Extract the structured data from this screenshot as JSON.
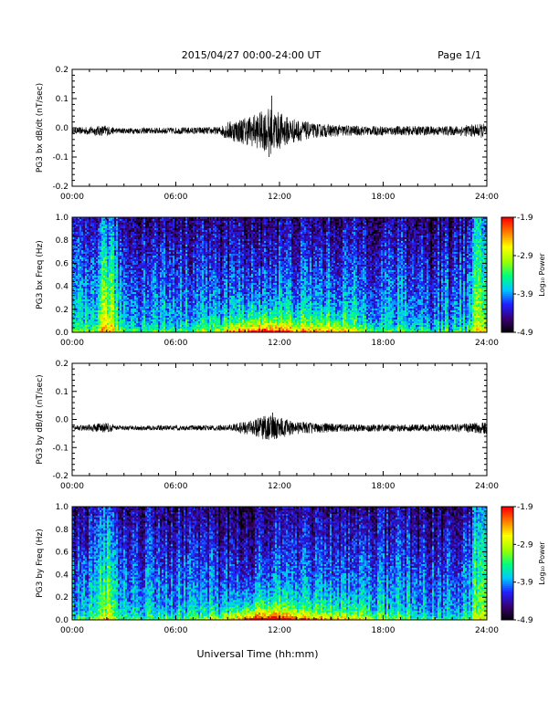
{
  "header": {
    "date_range": "2015/04/27  00:00-24:00 UT",
    "page": "Page 1/1"
  },
  "footer": {
    "xlabel": "Universal Time (hh:mm)"
  },
  "colors": {
    "trace": "#000000",
    "colormap": [
      "#000000",
      "#3a0070",
      "#2020ff",
      "#00c8ff",
      "#00ff80",
      "#a0ff00",
      "#ffff00",
      "#ff8000",
      "#ff0000"
    ]
  },
  "chart_data": [
    {
      "type": "line",
      "name": "panel-bx-dbdt",
      "ylabel": "PG3 bx dB/dt (nT/sec)",
      "xlim": [
        0,
        24
      ],
      "ylim": [
        -0.2,
        0.2
      ],
      "x_ticks": [
        "00:00",
        "06:00",
        "12:00",
        "18:00",
        "24:00"
      ],
      "y_ticks": [
        "0.2",
        "0.1",
        "0.0",
        "-0.1",
        "-0.2"
      ],
      "baseline": -0.01,
      "envelope": [
        {
          "t": 0,
          "amp": 0.006
        },
        {
          "t": 1.9,
          "amp": 0.012
        },
        {
          "t": 2.5,
          "amp": 0.006
        },
        {
          "t": 8.5,
          "amp": 0.008
        },
        {
          "t": 9.0,
          "amp": 0.02
        },
        {
          "t": 10.5,
          "amp": 0.035
        },
        {
          "t": 11.5,
          "amp": 0.05
        },
        {
          "t": 12.5,
          "amp": 0.03
        },
        {
          "t": 14.0,
          "amp": 0.015
        },
        {
          "t": 17.0,
          "amp": 0.01
        },
        {
          "t": 22.0,
          "amp": 0.01
        },
        {
          "t": 24,
          "amp": 0.016
        }
      ],
      "spikes": [
        {
          "t": 11.55,
          "y": 0.11
        },
        {
          "t": 11.4,
          "y": -0.1
        },
        {
          "t": 11.1,
          "y": 0.035
        }
      ]
    },
    {
      "type": "heatmap",
      "name": "panel-bx-freq",
      "ylabel": "PG3 bx Freq (Hz)",
      "xlim": [
        0,
        24
      ],
      "ylim": [
        0,
        1.0
      ],
      "x_ticks": [
        "00:00",
        "06:00",
        "12:00",
        "18:00",
        "24:00"
      ],
      "y_ticks": [
        "1.0",
        "0.8",
        "0.6",
        "0.4",
        "0.2",
        "0.0"
      ],
      "colorbar": {
        "label": "Log₁₀ Power",
        "min": -4.9,
        "max": -1.9,
        "ticks": [
          "-1.9",
          "-2.9",
          "-3.9",
          "-4.9"
        ]
      },
      "bright_bands": [
        {
          "t": 2.0,
          "width": 0.6,
          "level": 0.55
        }
      ],
      "low_freq_enhancement": [
        {
          "t": 11.0,
          "width": 2.5,
          "level": 0.5
        },
        {
          "t": 15.0,
          "width": 2.0,
          "level": 0.3
        }
      ]
    },
    {
      "type": "line",
      "name": "panel-by-dbdt",
      "ylabel": "PG3 by dB/dt (nT/sec)",
      "xlim": [
        0,
        24
      ],
      "ylim": [
        -0.2,
        0.2
      ],
      "x_ticks": [
        "00:00",
        "06:00",
        "12:00",
        "18:00",
        "24:00"
      ],
      "y_ticks": [
        "0.2",
        "0.1",
        "0.0",
        "-0.1",
        "-0.2"
      ],
      "baseline": -0.03,
      "envelope": [
        {
          "t": 0,
          "amp": 0.004
        },
        {
          "t": 1.9,
          "amp": 0.012
        },
        {
          "t": 2.6,
          "amp": 0.005
        },
        {
          "t": 9.0,
          "amp": 0.006
        },
        {
          "t": 10.0,
          "amp": 0.015
        },
        {
          "t": 11.5,
          "amp": 0.03
        },
        {
          "t": 13.0,
          "amp": 0.014
        },
        {
          "t": 16.0,
          "amp": 0.008
        },
        {
          "t": 22.0,
          "amp": 0.008
        },
        {
          "t": 24,
          "amp": 0.014
        }
      ],
      "spikes": [
        {
          "t": 11.6,
          "y": 0.025
        },
        {
          "t": 11.3,
          "y": -0.07
        }
      ]
    },
    {
      "type": "heatmap",
      "name": "panel-by-freq",
      "ylabel": "PG3 by Freq (Hz)",
      "xlim": [
        0,
        24
      ],
      "ylim": [
        0,
        1.0
      ],
      "x_ticks": [
        "00:00",
        "06:00",
        "12:00",
        "18:00",
        "24:00"
      ],
      "y_ticks": [
        "1.0",
        "0.8",
        "0.6",
        "0.4",
        "0.2",
        "0.0"
      ],
      "colorbar": {
        "label": "Log₁₀ Power",
        "min": -4.9,
        "max": -1.9,
        "ticks": [
          "-1.9",
          "-2.9",
          "-3.9",
          "-4.9"
        ]
      },
      "bright_bands": [
        {
          "t": 2.0,
          "width": 0.5,
          "level": 0.4
        }
      ],
      "low_freq_enhancement": [
        {
          "t": 11.2,
          "width": 2.5,
          "level": 0.6
        },
        {
          "t": 15.5,
          "width": 2.5,
          "level": 0.25
        }
      ]
    }
  ]
}
